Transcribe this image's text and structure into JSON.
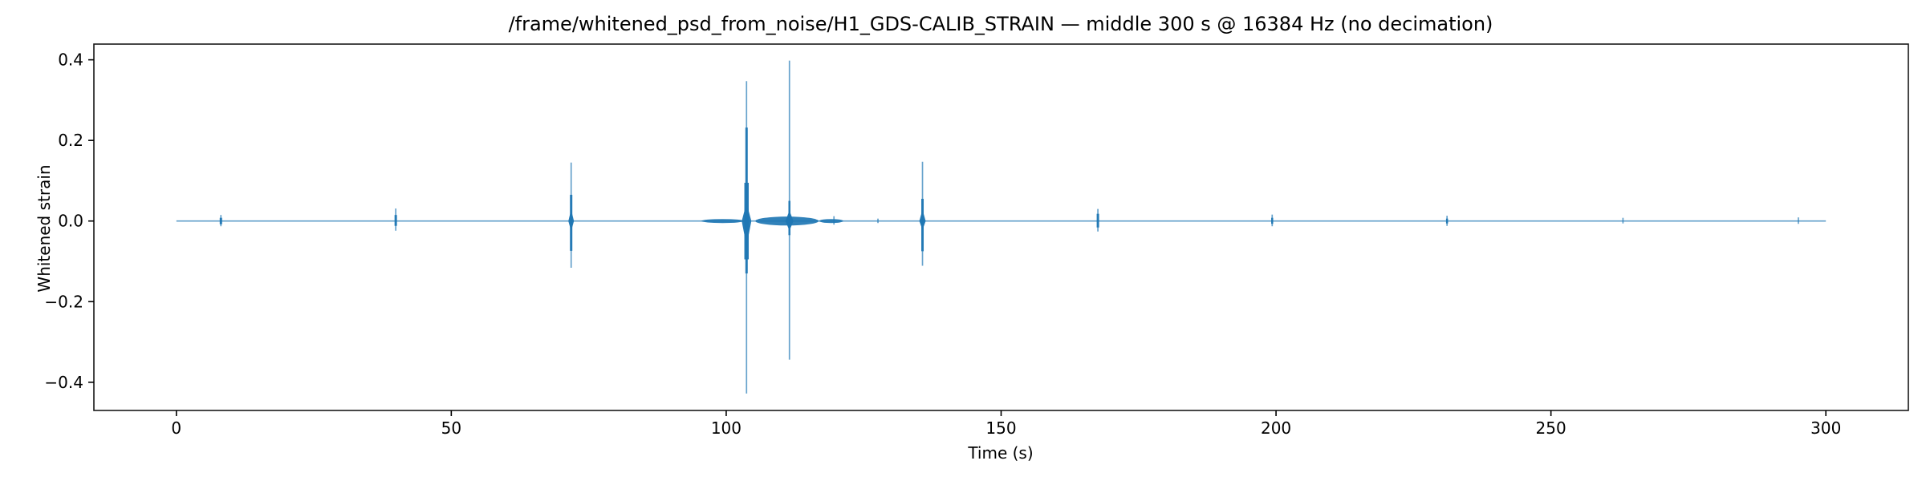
{
  "window": {
    "background": "#ffffff"
  },
  "chart_data": {
    "type": "line",
    "title": "/frame/whitened_psd_from_noise/H1_GDS-CALIB_STRAIN — middle 300 s @ 16384 Hz (no decimation)",
    "xlabel": "Time (s)",
    "ylabel": "Whitened strain",
    "xlim": [
      -15,
      315
    ],
    "ylim": [
      -0.47,
      0.439
    ],
    "xticks": [
      0,
      50,
      100,
      150,
      200,
      250,
      300
    ],
    "xtick_labels": [
      "0",
      "50",
      "100",
      "150",
      "200",
      "250",
      "300"
    ],
    "yticks": [
      0.4,
      0.2,
      0.0,
      -0.2,
      -0.4
    ],
    "ytick_labels": [
      "0.4",
      "0.2",
      "0.0",
      "−0.2",
      "−0.4"
    ],
    "grid": false,
    "legend": false,
    "line_color": "#1f77b4",
    "axis_color": "#000000",
    "baseline": {
      "value": 0.0,
      "t_start": 0,
      "t_end": 300
    },
    "spikes": [
      {
        "t": 8.1,
        "up": 0.015,
        "down": -0.013,
        "mid_up": 0.008,
        "mid_down": -0.008,
        "mid_w": 3
      },
      {
        "t": 39.9,
        "up": 0.031,
        "down": -0.024,
        "mid_up": 0.015,
        "mid_down": -0.012,
        "mid_w": 3
      },
      {
        "t": 71.8,
        "up": 0.145,
        "down": -0.116,
        "mid_up": 0.065,
        "mid_down": -0.074,
        "mid_w": 3,
        "blob_up": 0.028,
        "blob_down": -0.025,
        "blob_hw": 3.5
      },
      {
        "t": 103.7,
        "up": 0.347,
        "down": -0.428,
        "mid_up": 0.232,
        "mid_down": -0.13,
        "mid_w": 3,
        "mid2_up": 0.095,
        "mid2_down": -0.095,
        "mid2_w": 5.5,
        "blob_up": 0.045,
        "blob_down": -0.062,
        "blob_hw": 6
      },
      {
        "t": 111.5,
        "up": 0.398,
        "down": -0.344,
        "mid_up": 0.05,
        "mid_down": -0.035,
        "mid_w": 2.5,
        "blob_up": 0.026,
        "blob_down": -0.024,
        "blob_hw": 5
      },
      {
        "t": 119.6,
        "up": 0.012,
        "down": -0.009
      },
      {
        "t": 127.6,
        "up": 0.006,
        "down": -0.005
      },
      {
        "t": 135.7,
        "up": 0.147,
        "down": -0.111,
        "mid_up": 0.055,
        "mid_down": -0.075,
        "mid_w": 3,
        "blob_up": 0.028,
        "blob_down": -0.022,
        "blob_hw": 4
      },
      {
        "t": 167.6,
        "up": 0.03,
        "down": -0.026,
        "mid_up": 0.018,
        "mid_down": -0.016,
        "mid_w": 3
      },
      {
        "t": 199.3,
        "up": 0.016,
        "down": -0.013,
        "mid_up": 0.008,
        "mid_down": -0.007,
        "mid_w": 2.5
      },
      {
        "t": 231.1,
        "up": 0.013,
        "down": -0.012,
        "mid_up": 0.006,
        "mid_down": -0.006,
        "mid_w": 2.5
      },
      {
        "t": 263.1,
        "up": 0.008,
        "down": -0.006
      },
      {
        "t": 295.0,
        "up": 0.009,
        "down": -0.007
      }
    ],
    "dense_segments": [
      {
        "t0": 95.5,
        "t1": 103.2,
        "amp": 0.005
      },
      {
        "t0": 105.3,
        "t1": 116.8,
        "amp": 0.011
      },
      {
        "t0": 116.9,
        "t1": 121.3,
        "amp": 0.005
      }
    ]
  }
}
